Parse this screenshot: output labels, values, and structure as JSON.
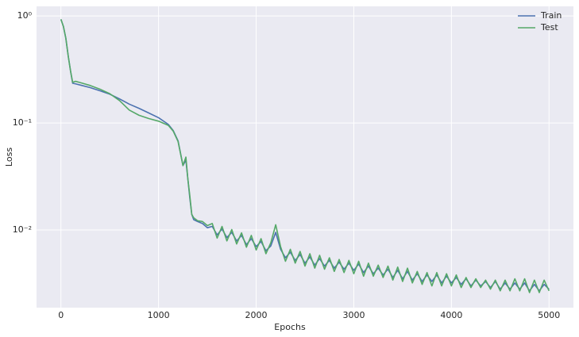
{
  "chart_data": {
    "type": "line",
    "xlabel": "Epochs",
    "ylabel": "Loss",
    "yscale": "log",
    "grid": true,
    "legend": "upper right",
    "xlim": [
      -250,
      5250
    ],
    "xticks": [
      0,
      1000,
      2000,
      3000,
      4000,
      5000
    ],
    "ylim": [
      0.00188,
      1.23
    ],
    "yticks": [
      {
        "value": 0.01,
        "label": "10⁻²"
      },
      {
        "value": 0.1,
        "label": "10⁻¹"
      },
      {
        "value": 1,
        "label": "10⁰"
      }
    ],
    "x": [
      0,
      25,
      50,
      75,
      100,
      120,
      150,
      200,
      300,
      400,
      500,
      600,
      700,
      800,
      900,
      1000,
      1100,
      1150,
      1200,
      1250,
      1280,
      1300,
      1320,
      1340,
      1360,
      1400,
      1450,
      1500,
      1550,
      1600,
      1650,
      1700,
      1750,
      1800,
      1850,
      1900,
      1950,
      2000,
      2050,
      2100,
      2150,
      2200,
      2250,
      2300,
      2350,
      2400,
      2450,
      2500,
      2550,
      2600,
      2650,
      2700,
      2750,
      2800,
      2850,
      2900,
      2950,
      3000,
      3050,
      3100,
      3150,
      3200,
      3250,
      3300,
      3350,
      3400,
      3450,
      3500,
      3550,
      3600,
      3650,
      3700,
      3750,
      3800,
      3850,
      3900,
      3950,
      4000,
      4050,
      4100,
      4150,
      4200,
      4250,
      4300,
      4350,
      4400,
      4450,
      4500,
      4550,
      4600,
      4650,
      4700,
      4750,
      4800,
      4850,
      4900,
      4950,
      5000
    ],
    "series": [
      {
        "name": "Train",
        "color": "#4c72b0",
        "values": [
          0.93,
          0.8,
          0.62,
          0.42,
          0.3,
          0.235,
          0.232,
          0.226,
          0.214,
          0.2,
          0.186,
          0.168,
          0.15,
          0.137,
          0.124,
          0.112,
          0.097,
          0.085,
          0.068,
          0.04,
          0.045,
          0.03,
          0.02,
          0.014,
          0.0125,
          0.012,
          0.0115,
          0.0105,
          0.0108,
          0.009,
          0.0102,
          0.0085,
          0.0095,
          0.0079,
          0.0089,
          0.0073,
          0.0083,
          0.007,
          0.0078,
          0.0064,
          0.0071,
          0.0095,
          0.0066,
          0.0055,
          0.0062,
          0.0052,
          0.0059,
          0.0049,
          0.0056,
          0.0047,
          0.0054,
          0.0046,
          0.0052,
          0.0044,
          0.005,
          0.0043,
          0.0049,
          0.0042,
          0.0048,
          0.004,
          0.0046,
          0.0039,
          0.0044,
          0.0038,
          0.0043,
          0.0036,
          0.0042,
          0.0035,
          0.0041,
          0.0034,
          0.0039,
          0.0033,
          0.0038,
          0.0033,
          0.0038,
          0.0032,
          0.0037,
          0.0032,
          0.0036,
          0.0031,
          0.0035,
          0.003,
          0.0034,
          0.003,
          0.0033,
          0.0029,
          0.0033,
          0.0028,
          0.0032,
          0.0028,
          0.0032,
          0.0028,
          0.0032,
          0.0027,
          0.0031,
          0.0027,
          0.0031,
          0.0028
        ]
      },
      {
        "name": "Test",
        "color": "#55a868",
        "values": [
          0.93,
          0.8,
          0.62,
          0.42,
          0.3,
          0.24,
          0.245,
          0.238,
          0.224,
          0.207,
          0.188,
          0.162,
          0.132,
          0.118,
          0.11,
          0.104,
          0.095,
          0.084,
          0.067,
          0.04,
          0.048,
          0.03,
          0.021,
          0.014,
          0.013,
          0.0122,
          0.012,
          0.011,
          0.0115,
          0.0084,
          0.0108,
          0.0079,
          0.0101,
          0.0074,
          0.0094,
          0.0069,
          0.0089,
          0.0065,
          0.0083,
          0.006,
          0.0076,
          0.0112,
          0.007,
          0.0051,
          0.0066,
          0.0049,
          0.0063,
          0.0046,
          0.006,
          0.0044,
          0.0058,
          0.0043,
          0.0055,
          0.0041,
          0.0053,
          0.004,
          0.0052,
          0.0039,
          0.0051,
          0.0037,
          0.0049,
          0.0037,
          0.0047,
          0.0036,
          0.0046,
          0.0034,
          0.0045,
          0.0033,
          0.0044,
          0.0032,
          0.0041,
          0.0031,
          0.004,
          0.003,
          0.004,
          0.003,
          0.0039,
          0.003,
          0.0038,
          0.0029,
          0.0036,
          0.0029,
          0.0035,
          0.0029,
          0.0034,
          0.0028,
          0.0034,
          0.0027,
          0.0034,
          0.0027,
          0.0035,
          0.0027,
          0.0035,
          0.0026,
          0.0034,
          0.0026,
          0.0034,
          0.0027
        ]
      }
    ]
  }
}
